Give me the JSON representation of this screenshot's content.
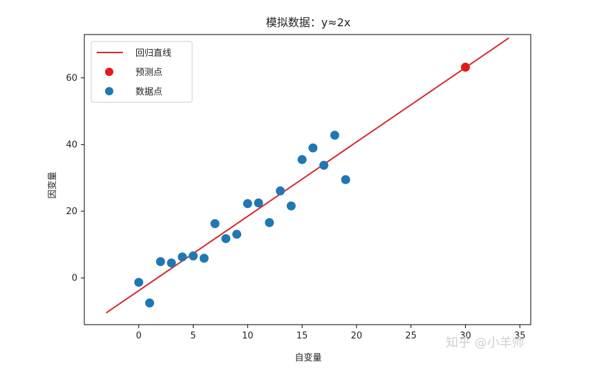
{
  "chart_data": {
    "type": "scatter",
    "title": "模拟数据：y≈2x",
    "xlabel": "自变量",
    "ylabel": "因变量",
    "xlim": [
      -5,
      36
    ],
    "ylim": [
      -14,
      73
    ],
    "xticks": [
      0,
      5,
      10,
      15,
      20,
      25,
      30,
      35
    ],
    "yticks": [
      0,
      20,
      40,
      60
    ],
    "legend_position": "top-left",
    "series": [
      {
        "name": "回归直线",
        "kind": "line",
        "color": "#d62728",
        "points": [
          [
            -3,
            -10.5
          ],
          [
            34,
            72
          ]
        ]
      },
      {
        "name": "预测点",
        "kind": "scatter",
        "color": "#e31a1c",
        "points": [
          [
            30,
            63.2
          ]
        ]
      },
      {
        "name": "数据点",
        "kind": "scatter",
        "color": "#1f77b4",
        "points": [
          [
            0,
            -1.3
          ],
          [
            1,
            -7.5
          ],
          [
            2,
            4.9
          ],
          [
            3,
            4.5
          ],
          [
            4,
            6.3
          ],
          [
            5,
            6.6
          ],
          [
            6,
            5.9
          ],
          [
            7,
            16.3
          ],
          [
            8,
            11.8
          ],
          [
            9,
            13.1
          ],
          [
            10,
            22.3
          ],
          [
            11,
            22.5
          ],
          [
            12,
            16.6
          ],
          [
            13,
            26.1
          ],
          [
            14,
            21.6
          ],
          [
            15,
            35.5
          ],
          [
            16,
            39.0
          ],
          [
            17,
            33.8
          ],
          [
            18,
            42.8
          ],
          [
            19,
            29.5
          ]
        ]
      }
    ]
  },
  "watermark": "知乎 @小羊师"
}
